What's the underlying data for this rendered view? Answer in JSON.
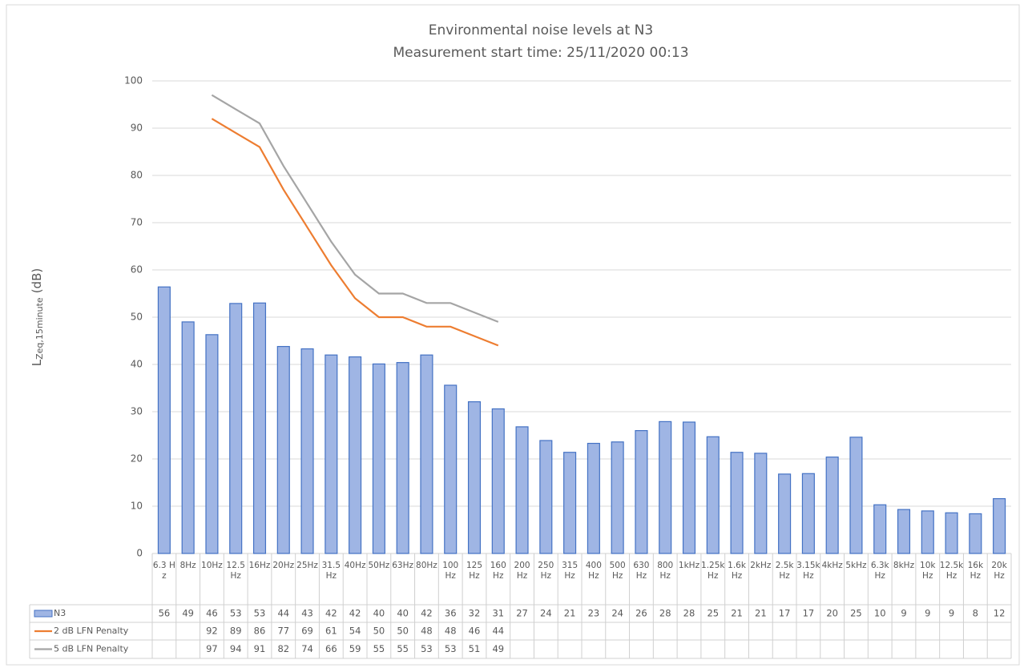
{
  "chart_data": {
    "type": "bar",
    "title": "Environmental noise levels at N3",
    "subtitle": "Measurement start time: 25/11/2020 00:13",
    "y_label": {
      "main": "L",
      "sub": "Zeq,15minute",
      "unit": "(dB)"
    },
    "categories": [
      "6.3 Hz",
      "8Hz",
      "10Hz",
      "12.5Hz",
      "16Hz",
      "20Hz",
      "25Hz",
      "31.5Hz",
      "40Hz",
      "50Hz",
      "63Hz",
      "80Hz",
      "100 Hz",
      "125 Hz",
      "160 Hz",
      "200 Hz",
      "250 Hz",
      "315 Hz",
      "400 Hz",
      "500 Hz",
      "630 Hz",
      "800 Hz",
      "1kHz",
      "1.25kHz",
      "1.6k Hz",
      "2kHz",
      "2.5k Hz",
      "3.15kHz",
      "4kHz",
      "5kHz",
      "6.3k Hz",
      "8kHz",
      "10k Hz",
      "12.5kHz",
      "16k Hz",
      "20k Hz"
    ],
    "series": [
      {
        "name": "N3",
        "type": "bar",
        "color": "#9fb5e4",
        "edge": "#4472c4",
        "values": [
          56.4,
          49,
          46.3,
          52.9,
          53,
          43.8,
          43.3,
          42,
          41.6,
          40.1,
          40.4,
          42,
          35.6,
          32.1,
          30.6,
          26.8,
          23.9,
          21.4,
          23.3,
          23.6,
          26,
          27.9,
          27.8,
          24.7,
          21.4,
          21.2,
          16.8,
          16.9,
          20.4,
          24.6,
          10.3,
          9.3,
          9,
          8.6,
          8.4,
          11.6
        ],
        "value_labels": [
          "56",
          "49",
          "46",
          "53",
          "53",
          "44",
          "43",
          "42",
          "42",
          "40",
          "40",
          "42",
          "36",
          "32",
          "31",
          "27",
          "24",
          "21",
          "23",
          "24",
          "26",
          "28",
          "28",
          "25",
          "21",
          "21",
          "17",
          "17",
          "20",
          "25",
          "10",
          "9",
          "9",
          "9",
          "8",
          "12"
        ]
      },
      {
        "name": "2 dB LFN Penalty",
        "type": "line",
        "color": "#ed7d31",
        "values": [
          null,
          null,
          92,
          89,
          86,
          77,
          69,
          61,
          54,
          50,
          50,
          48,
          48,
          46,
          44,
          null,
          null,
          null,
          null,
          null,
          null,
          null,
          null,
          null,
          null,
          null,
          null,
          null,
          null,
          null,
          null,
          null,
          null,
          null,
          null,
          null
        ]
      },
      {
        "name": "5 dB LFN Penalty",
        "type": "line",
        "color": "#a5a5a5",
        "values": [
          null,
          null,
          97,
          94,
          91,
          82,
          74,
          66,
          59,
          55,
          55,
          53,
          53,
          51,
          49,
          null,
          null,
          null,
          null,
          null,
          null,
          null,
          null,
          null,
          null,
          null,
          null,
          null,
          null,
          null,
          null,
          null,
          null,
          null,
          null,
          null
        ]
      }
    ],
    "ylim": [
      0,
      100
    ],
    "yticks": [
      0,
      10,
      20,
      30,
      40,
      50,
      60,
      70,
      80,
      90,
      100
    ],
    "grid": true
  }
}
